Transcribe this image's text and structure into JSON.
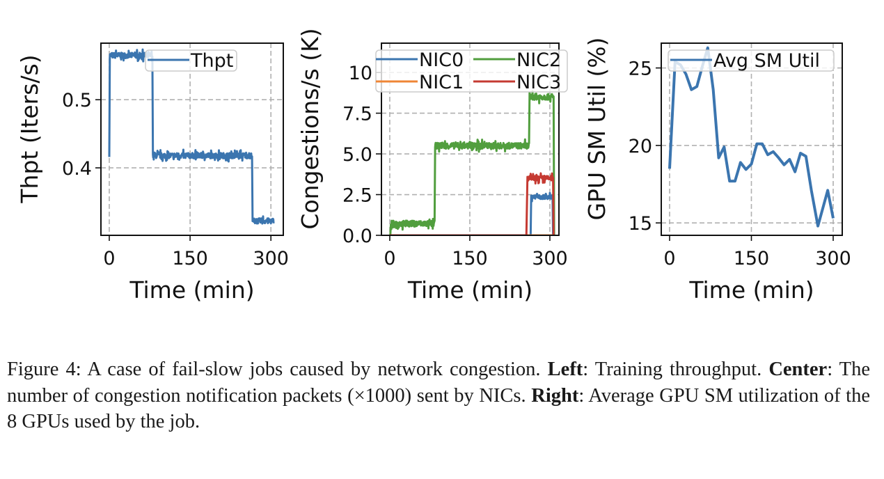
{
  "chart_data": [
    {
      "type": "line",
      "ylabel": "Thpt (Iters/s)",
      "xlabel": "Time (min)",
      "xlim": [
        -15.5,
        323
      ],
      "ylim": [
        0.301,
        0.583
      ],
      "xticks": [
        0,
        150,
        300
      ],
      "xtick_labels": [
        "0",
        "150",
        "300"
      ],
      "yticks": [
        0.4,
        0.5
      ],
      "ytick_labels": [
        "0.4",
        "0.5"
      ],
      "grid": true,
      "legend_placement": "top-center",
      "series": [
        {
          "name": "Thpt",
          "color": "#3b75af",
          "noise": 0.004,
          "segments": [
            [
              0,
              0.42,
              0.42
            ],
            [
              1,
              80,
              0.565
            ],
            [
              81,
              265,
              0.418
            ],
            [
              266,
              305,
              0.322
            ]
          ]
        }
      ]
    },
    {
      "type": "line",
      "ylabel": "Congestions/s (K)",
      "xlabel": "Time (min)",
      "xlim": [
        -15.6,
        317
      ],
      "ylim": [
        0,
        11.8
      ],
      "xticks": [
        0,
        150,
        300
      ],
      "xtick_labels": [
        "0",
        "150",
        "300"
      ],
      "yticks": [
        0,
        2.5,
        5,
        7.5,
        10
      ],
      "ytick_labels": [
        "0.0",
        "2.5",
        "5.0",
        "7.5",
        "10"
      ],
      "grid": true,
      "legend_placement": "top",
      "series": [
        {
          "name": "NIC0",
          "color": "#3b75af",
          "noise": 0.12,
          "segments": [
            [
              0,
              264,
              0
            ],
            [
              265,
              305,
              2.35
            ],
            [
              306,
              306,
              0
            ]
          ]
        },
        {
          "name": "NIC1",
          "color": "#ef8636",
          "noise": 0,
          "segments": [
            [
              0,
              308,
              0
            ]
          ]
        },
        {
          "name": "NIC2",
          "color": "#519e3e",
          "noise": 0.18,
          "segments": [
            [
              0,
              1,
              0
            ],
            [
              2,
              84,
              0.72
            ],
            [
              85,
              261,
              5.5
            ],
            [
              262,
              307,
              8.5
            ],
            [
              308,
              308,
              0
            ]
          ]
        },
        {
          "name": "NIC3",
          "color": "#c53a32",
          "noise": 0.15,
          "segments": [
            [
              0,
              256,
              0
            ],
            [
              258,
              306,
              3.5
            ],
            [
              307,
              307,
              0
            ]
          ]
        }
      ]
    },
    {
      "type": "line",
      "ylabel": "GPU SM Util (%)",
      "xlabel": "Time (min)",
      "xlim": [
        -15.3,
        316.6
      ],
      "ylim": [
        14.2,
        26.6
      ],
      "xticks": [
        0,
        150,
        300
      ],
      "xtick_labels": [
        "0",
        "150",
        "300"
      ],
      "yticks": [
        15,
        20,
        25
      ],
      "ytick_labels": [
        "15",
        "20",
        "25"
      ],
      "grid": true,
      "legend_placement": "top",
      "series": [
        {
          "name": "Avg SM Util",
          "color": "#3b75af",
          "x": [
            0,
            10,
            20,
            30,
            40,
            50,
            60,
            70,
            80,
            90,
            100,
            110,
            120,
            130,
            140,
            150,
            160,
            170,
            180,
            190,
            200,
            210,
            220,
            230,
            240,
            250,
            260,
            272,
            290,
            300
          ],
          "y": [
            18.5,
            25.4,
            25.2,
            24.6,
            23.6,
            23.8,
            25.1,
            26.3,
            23.6,
            19.2,
            19.9,
            17.7,
            17.7,
            18.9,
            18.45,
            18.8,
            20.1,
            20.1,
            19.4,
            19.6,
            19.2,
            18.75,
            19.1,
            18.3,
            19.5,
            19.3,
            17.1,
            14.8,
            17.1,
            15.3
          ]
        }
      ]
    }
  ],
  "caption": {
    "label": "Figure 4:",
    "intro": " A case of fail-slow jobs caused by network congestion. ",
    "left_label": "Left",
    "left_text": ": Training throughput. ",
    "center_label": "Center",
    "center_text": ": The number of congestion notification packets (×1000) sent by NICs. ",
    "right_label": "Right",
    "right_text": ": Average GPU SM utilization of the 8 GPUs used by the job."
  }
}
